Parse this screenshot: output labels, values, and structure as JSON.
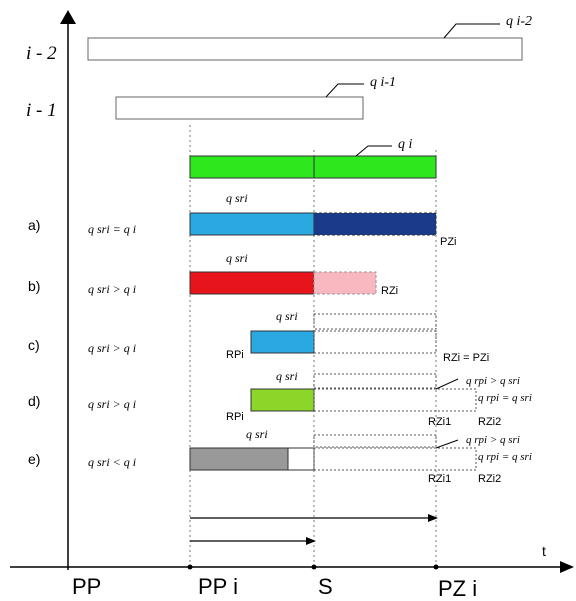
{
  "axis": {
    "t_label": "t",
    "y_labels": [
      "i - 2",
      "i - 1"
    ],
    "x_labels": [
      "PP",
      "PP i",
      "S",
      "PZ i"
    ]
  },
  "bars_top": {
    "q_i_minus_2": "q i-2",
    "q_i_minus_1": "q i-1",
    "q_i": "q i"
  },
  "cases": [
    {
      "id": "a)",
      "condition": "q sri = q i",
      "bar_label": "q sri",
      "color": "#2aa8e0",
      "color2": "#1a3a8a",
      "tags": [
        "PZi"
      ]
    },
    {
      "id": "b)",
      "condition": "q sri > q i",
      "bar_label": "q sri",
      "color": "#e8141c",
      "color2": "#f7b8c0",
      "tags": [
        "RZi"
      ]
    },
    {
      "id": "c)",
      "condition": "q sri > q i",
      "bar_label": "q sri",
      "color": "#2aa8e0",
      "tags": [
        "RPi",
        "RZi = PZi"
      ]
    },
    {
      "id": "d)",
      "condition": "q sri > q i",
      "bar_label": "q sri",
      "color": "#8cd62a",
      "tags": [
        "RPi",
        "RZi1",
        "RZi2",
        "q rpi > q sri",
        "q rpi = q sri"
      ]
    },
    {
      "id": "e)",
      "condition": "q sri < q i",
      "bar_label": "q sri",
      "color": "#999999",
      "tags": [
        "RZi1",
        "RZi2",
        "q rpi > q sri",
        "q rpi = q sri"
      ]
    }
  ],
  "colors": {
    "q_i_bar": "#2ee81e",
    "outline": "#555555"
  }
}
